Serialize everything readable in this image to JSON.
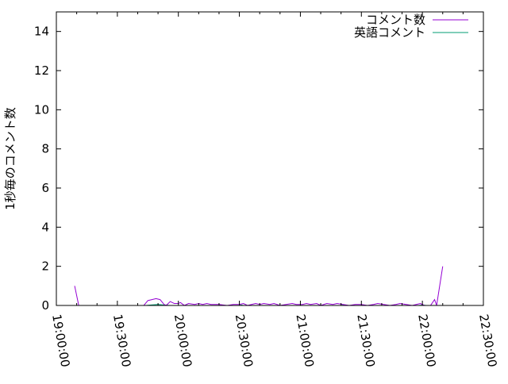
{
  "chart_data": {
    "type": "line",
    "title": "",
    "xlabel": "",
    "ylabel": "1秒毎のコメント数",
    "xlim": [
      "19:00:00",
      "22:30:00"
    ],
    "ylim": [
      0,
      15
    ],
    "x_ticks": [
      "19:00:00",
      "19:30:00",
      "20:00:00",
      "20:30:00",
      "21:00:00",
      "21:30:00",
      "22:00:00",
      "22:30:00"
    ],
    "y_ticks": [
      "0",
      "2",
      "4",
      "6",
      "8",
      "10",
      "12",
      "14"
    ],
    "grid": false,
    "legend_position": "top-right",
    "series": [
      {
        "name": "コメント数",
        "color": "#9400d3",
        "points": [
          [
            "19:09",
            1
          ],
          [
            "19:11",
            0
          ],
          [
            "19:43",
            0
          ],
          [
            "19:45",
            0.25
          ],
          [
            "19:47",
            0.3
          ],
          [
            "19:49",
            0.35
          ],
          [
            "19:51",
            0.3
          ],
          [
            "19:53",
            0.05
          ],
          [
            "19:54",
            0
          ],
          [
            "19:56",
            0.2
          ],
          [
            "19:58",
            0.1
          ],
          [
            "20:00",
            0.1
          ],
          [
            "20:01",
            0.15
          ],
          [
            "20:03",
            0
          ],
          [
            "20:05",
            0.1
          ],
          [
            "20:08",
            0.05
          ],
          [
            "20:10",
            0.1
          ],
          [
            "20:12",
            0.05
          ],
          [
            "20:14",
            0.1
          ],
          [
            "20:16",
            0.05
          ],
          [
            "20:20",
            0.05
          ],
          [
            "20:24",
            0
          ],
          [
            "20:27",
            0.05
          ],
          [
            "20:30",
            0.05
          ],
          [
            "20:32",
            0.1
          ],
          [
            "20:34",
            0
          ],
          [
            "20:36",
            0.05
          ],
          [
            "20:38",
            0.1
          ],
          [
            "20:40",
            0.05
          ],
          [
            "20:42",
            0.1
          ],
          [
            "20:45",
            0.05
          ],
          [
            "20:47",
            0.1
          ],
          [
            "20:50",
            0
          ],
          [
            "20:53",
            0.05
          ],
          [
            "20:56",
            0.1
          ],
          [
            "20:58",
            0.05
          ],
          [
            "21:01",
            0.05
          ],
          [
            "21:03",
            0.1
          ],
          [
            "21:05",
            0.05
          ],
          [
            "21:08",
            0.1
          ],
          [
            "21:10",
            0
          ],
          [
            "21:13",
            0.1
          ],
          [
            "21:16",
            0.05
          ],
          [
            "21:18",
            0.1
          ],
          [
            "21:21",
            0.05
          ],
          [
            "21:24",
            0
          ],
          [
            "21:27",
            0.05
          ],
          [
            "21:30",
            0.05
          ],
          [
            "21:33",
            0
          ],
          [
            "21:36",
            0.05
          ],
          [
            "21:38",
            0.1
          ],
          [
            "21:41",
            0.05
          ],
          [
            "21:44",
            0
          ],
          [
            "21:47",
            0.05
          ],
          [
            "21:49",
            0.1
          ],
          [
            "21:52",
            0.05
          ],
          [
            "21:55",
            0
          ],
          [
            "21:57",
            0.05
          ],
          [
            "21:59",
            0.1
          ],
          [
            "22:01",
            0
          ],
          [
            "22:04",
            0
          ],
          [
            "22:06",
            0.3
          ],
          [
            "22:07",
            0
          ],
          [
            "22:10",
            2
          ]
        ]
      },
      {
        "name": "英語コメント",
        "color": "#009e73",
        "points": [
          [
            "19:09",
            0
          ],
          [
            "19:44",
            0
          ],
          [
            "19:46",
            0.02
          ],
          [
            "19:50",
            0.05
          ],
          [
            "19:53",
            0.02
          ],
          [
            "19:56",
            0
          ],
          [
            "20:30",
            0
          ],
          [
            "20:31",
            0.02
          ],
          [
            "20:32",
            0
          ],
          [
            "21:20",
            0
          ],
          [
            "21:21",
            0.02
          ],
          [
            "21:22",
            0
          ],
          [
            "21:58",
            0
          ],
          [
            "22:00",
            0.02
          ],
          [
            "22:02",
            0
          ],
          [
            "22:10",
            0
          ]
        ]
      }
    ]
  }
}
